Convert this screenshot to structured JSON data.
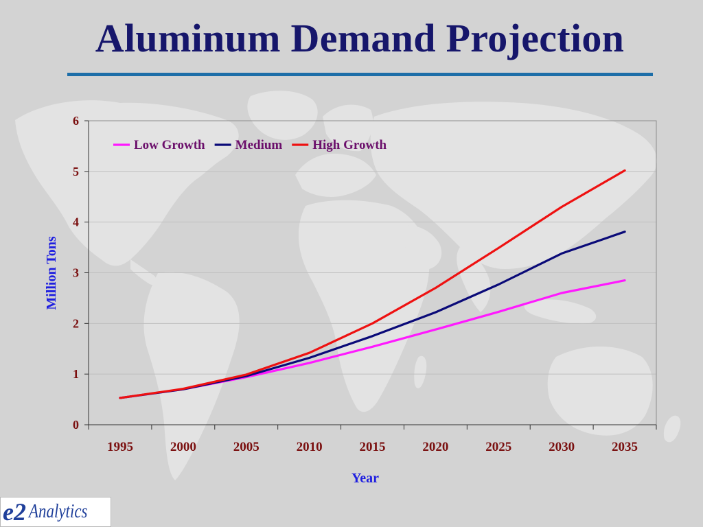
{
  "slide": {
    "title": "Aluminum Demand Projection"
  },
  "logo": {
    "mark": "e2",
    "text": "Analytics"
  },
  "colors": {
    "title": "#16166b",
    "rule": "#1d6ea8",
    "tick_labels": "#7a0f0f",
    "axis_titles": "#1f1fe0",
    "legend_text": "#6b0f6b"
  },
  "chart_data": {
    "type": "line",
    "title": "",
    "xlabel": "Year",
    "ylabel": "Million Tons",
    "x": [
      1995,
      2000,
      2005,
      2010,
      2015,
      2020,
      2025,
      2030,
      2035
    ],
    "xticks": [
      "1995",
      "2000",
      "2005",
      "2010",
      "2015",
      "2020",
      "2025",
      "2030",
      "2035"
    ],
    "yticks": [
      "0",
      "1",
      "2",
      "3",
      "4",
      "5",
      "6"
    ],
    "ylim": [
      0,
      6
    ],
    "grid": true,
    "legend_position": "top-left",
    "series": [
      {
        "name": "Low Growth",
        "color": "#ff19ff",
        "values": [
          0.53,
          0.7,
          0.94,
          1.22,
          1.54,
          1.88,
          2.23,
          2.6,
          2.85
        ]
      },
      {
        "name": "Medium",
        "color": "#0a0a78",
        "values": [
          0.53,
          0.7,
          0.96,
          1.32,
          1.75,
          2.22,
          2.77,
          3.38,
          3.81
        ]
      },
      {
        "name": "High Growth",
        "color": "#ee1111",
        "values": [
          0.53,
          0.71,
          0.99,
          1.42,
          2.0,
          2.7,
          3.49,
          4.3,
          5.02
        ]
      }
    ]
  }
}
